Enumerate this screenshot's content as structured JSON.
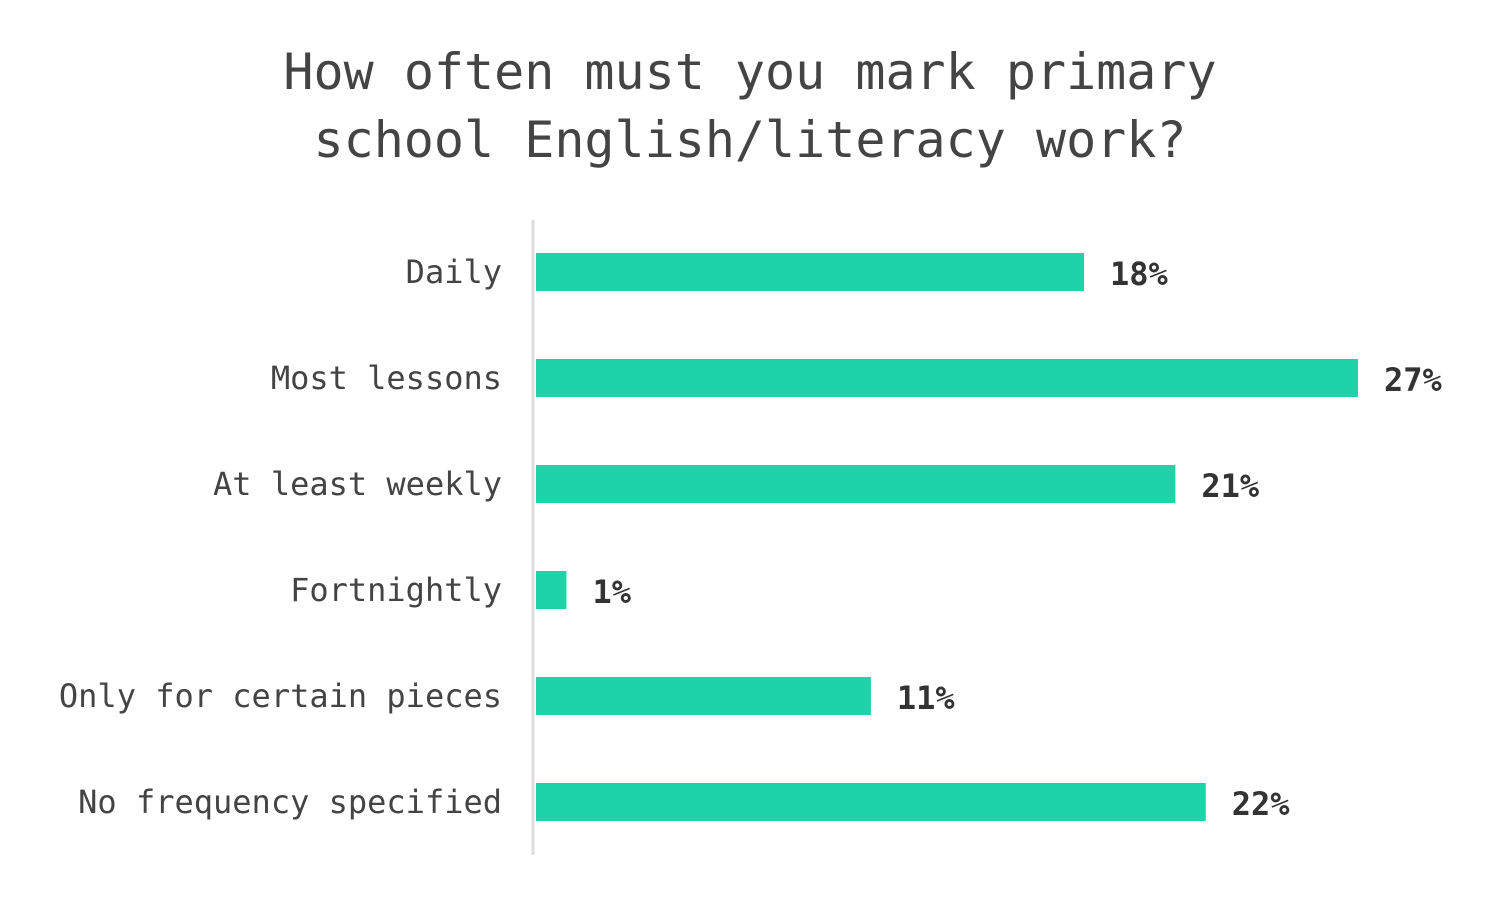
{
  "chart_data": {
    "type": "bar",
    "orientation": "horizontal",
    "title": [
      "How often must you mark primary",
      "school English/literacy work?"
    ],
    "categories": [
      "Daily",
      "Most lessons",
      "At least weekly",
      "Fortnightly",
      "Only for certain pieces",
      "No frequency specified"
    ],
    "values": [
      18,
      27,
      21,
      1,
      11,
      22
    ],
    "value_labels": [
      "18%",
      "27%",
      "21%",
      "1%",
      "11%",
      "22%"
    ],
    "unit": "%",
    "xlim": [
      0,
      27
    ],
    "grid": false,
    "bar_color": "#1fd3a8",
    "axis_color": "#dddddd"
  }
}
